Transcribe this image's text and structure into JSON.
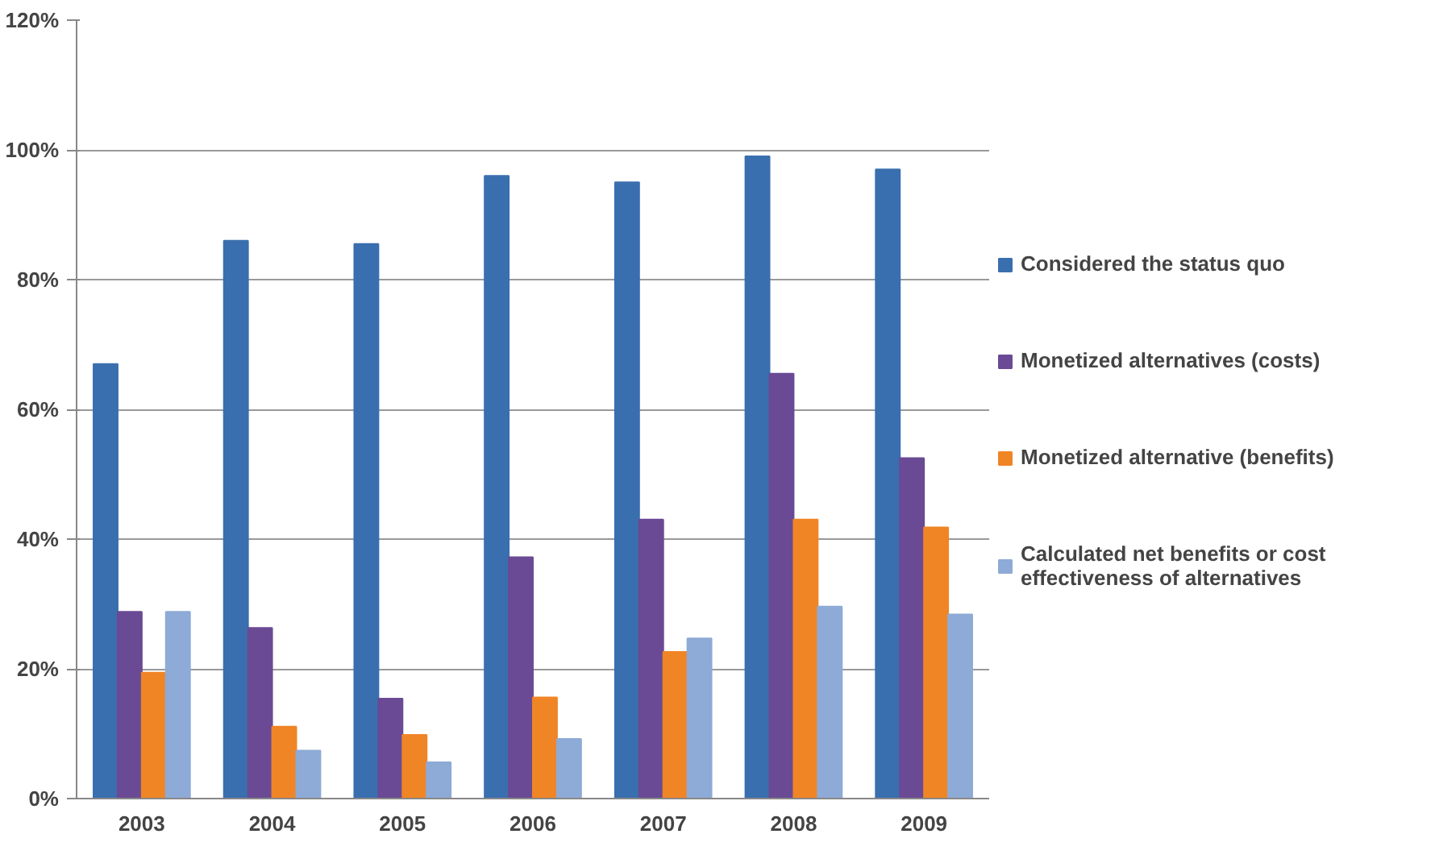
{
  "chart_data": {
    "type": "bar",
    "categories": [
      "2003",
      "2004",
      "2005",
      "2006",
      "2007",
      "2008",
      "2009"
    ],
    "series": [
      {
        "name": "Considered the status quo",
        "color": "#3a6faf",
        "values": [
          67,
          86,
          85.5,
          96,
          95,
          99,
          97
        ]
      },
      {
        "name": "Monetized alternatives (costs)",
        "color": "#6a4a94",
        "values": [
          28.8,
          26.3,
          15.4,
          37.2,
          43,
          65.5,
          52.5
        ]
      },
      {
        "name": "Monetized alternative (benefits)",
        "color": "#f08526",
        "values": [
          19.4,
          11.1,
          9.8,
          15.6,
          22.6,
          43,
          41.8
        ]
      },
      {
        "name": "Calculated net benefits or cost effectiveness of alternatives",
        "color": "#8eaad6",
        "values": [
          28.8,
          7.4,
          5.6,
          9.2,
          24.7,
          29.6,
          28.4
        ]
      }
    ],
    "ylim": [
      0,
      120
    ],
    "yticks": [
      {
        "value": 0,
        "label": "0%"
      },
      {
        "value": 20,
        "label": "20%"
      },
      {
        "value": 40,
        "label": "40%"
      },
      {
        "value": 60,
        "label": "60%"
      },
      {
        "value": 80,
        "label": "80%"
      },
      {
        "value": 100,
        "label": "100%"
      },
      {
        "value": 120,
        "label": "120%"
      }
    ],
    "grid": "y",
    "legend": "right"
  }
}
